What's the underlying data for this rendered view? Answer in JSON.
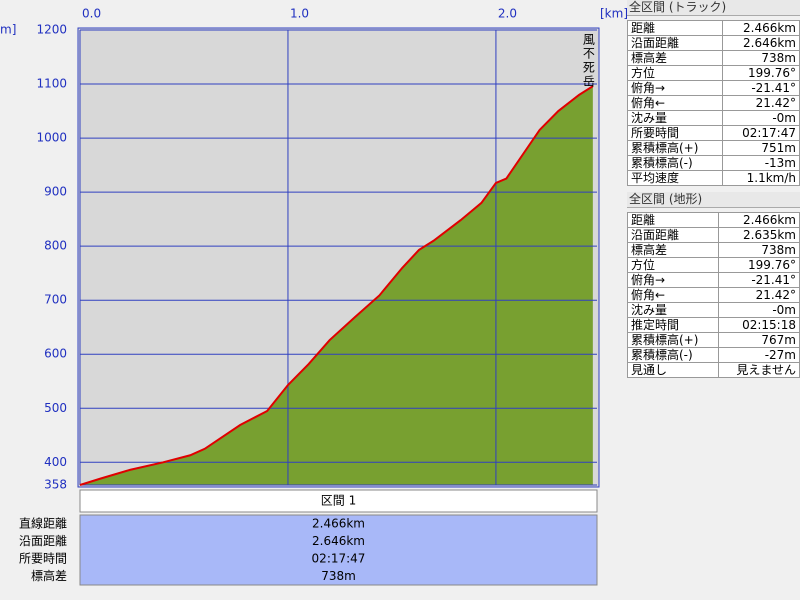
{
  "chart_data": {
    "type": "area",
    "x_unit": "[km]",
    "y_unit": "m]",
    "annotation": "風不死岳",
    "color": "#e00000",
    "fill": "#78a030",
    "x": [
      0,
      0.1,
      0.24,
      0.4,
      0.53,
      0.6,
      0.77,
      0.9,
      1.0,
      1.1,
      1.2,
      1.32,
      1.44,
      1.55,
      1.63,
      1.7,
      1.83,
      1.93,
      2.0,
      2.05,
      2.21,
      2.3,
      2.4,
      2.466
    ],
    "values": [
      358,
      370,
      386,
      400,
      413,
      425,
      469,
      495,
      543,
      582,
      626,
      668,
      709,
      760,
      793,
      810,
      848,
      880,
      917,
      925,
      1015,
      1050,
      1080,
      1096
    ],
    "xlim": [
      0,
      2.486
    ],
    "xticks": [
      {
        "value": 0,
        "label": "0.0"
      },
      {
        "value": 1,
        "label": "1.0"
      },
      {
        "value": 2,
        "label": "2.0"
      }
    ],
    "ylim": [
      358,
      1200
    ],
    "yticks": [
      358,
      400,
      500,
      600,
      700,
      800,
      900,
      1000,
      1100,
      1200
    ],
    "grid": true
  },
  "track_summary": {
    "title": "全区間 (トラック)",
    "rows": [
      [
        "距離",
        "2.466km"
      ],
      [
        "沿面距離",
        "2.646km"
      ],
      [
        "標高差",
        "738m"
      ],
      [
        "方位",
        "199.76°"
      ],
      [
        "俯角→",
        "-21.41°"
      ],
      [
        "俯角←",
        "21.42°"
      ],
      [
        "沈み量",
        "-0m"
      ],
      [
        "所要時間",
        "02:17:47"
      ],
      [
        "累積標高(+)",
        "751m"
      ],
      [
        "累積標高(-)",
        "-13m"
      ],
      [
        "平均速度",
        "1.1km/h"
      ]
    ]
  },
  "terrain_summary": {
    "title": "全区間 (地形)",
    "rows": [
      [
        "距離",
        "2.466km"
      ],
      [
        "沿面距離",
        "2.635km"
      ],
      [
        "標高差",
        "738m"
      ],
      [
        "方位",
        "199.76°"
      ],
      [
        "俯角→",
        "-21.41°"
      ],
      [
        "俯角←",
        "21.42°"
      ],
      [
        "沈み量",
        "-0m"
      ],
      [
        "推定時間",
        "02:15:18"
      ],
      [
        "累積標高(+)",
        "767m"
      ],
      [
        "累積標高(-)",
        "-27m"
      ],
      [
        "見通し",
        "見えません"
      ]
    ]
  },
  "section": {
    "title": "区間 1",
    "rows": [
      [
        "直線距離",
        "2.466km"
      ],
      [
        "沿面距離",
        "2.646km"
      ],
      [
        "所要時間",
        "02:17:47"
      ],
      [
        "標高差",
        "738m"
      ]
    ]
  }
}
